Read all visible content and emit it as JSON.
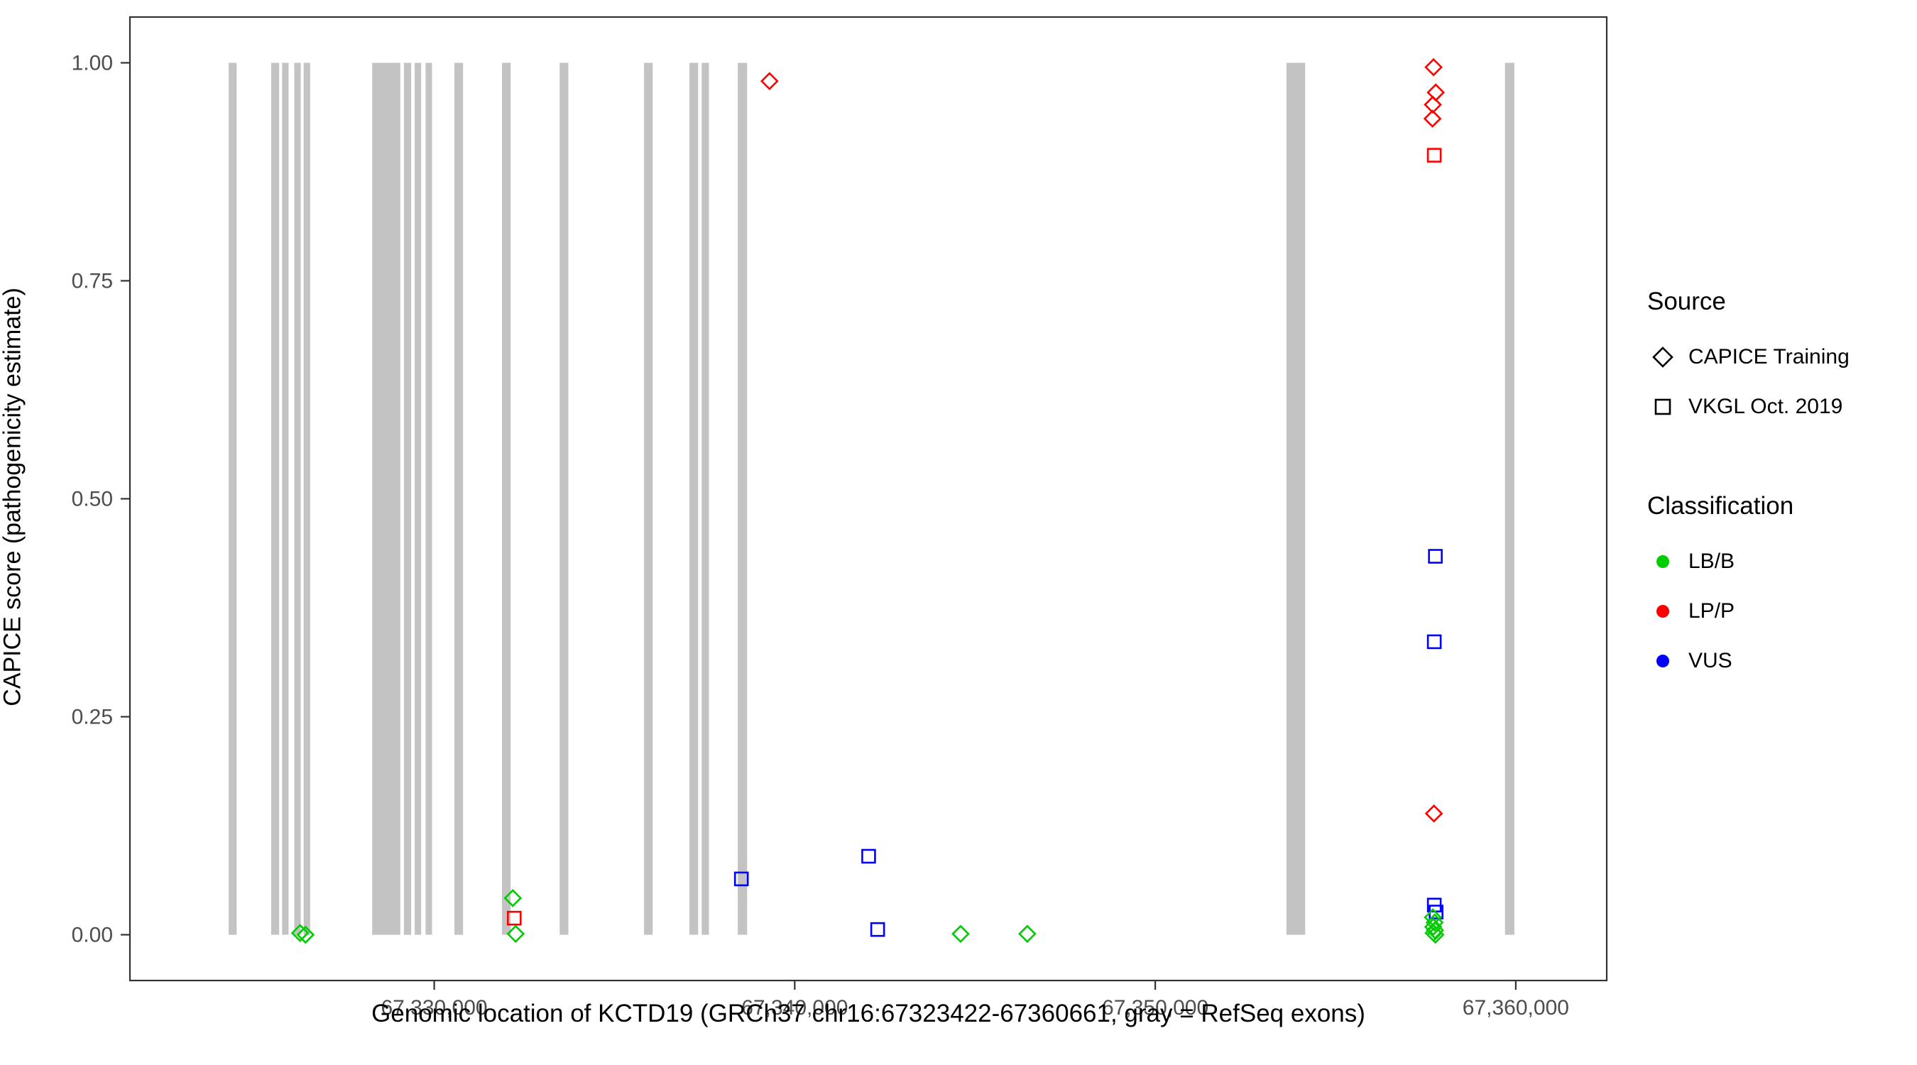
{
  "chart_data": {
    "type": "scatter",
    "title": "",
    "xlabel": "Genomic location of KCTD19 (GRCh37 chr16:67323422-67360661, gray = RefSeq exons)",
    "ylabel": "CAPICE score (pathogenicity estimate)",
    "xlim": [
      67321560,
      67362523
    ],
    "ylim": [
      -0.0525,
      1.0525
    ],
    "x_ticks": [
      67330000,
      67340000,
      67350000,
      67360000
    ],
    "x_tick_labels": [
      "67,330,000",
      "67,340,000",
      "67,350,000",
      "67,360,000"
    ],
    "y_ticks": [
      0.0,
      0.25,
      0.5,
      0.75,
      1.0
    ],
    "y_tick_labels": [
      "0.00",
      "0.25",
      "0.50",
      "0.75",
      "1.00"
    ],
    "grid": false,
    "legend_position": "right",
    "exon_span": [
      0.0,
      1.0
    ],
    "exons": [
      {
        "start": 67324300,
        "end": 67324520
      },
      {
        "start": 67325480,
        "end": 67325700
      },
      {
        "start": 67325780,
        "end": 67325960
      },
      {
        "start": 67326120,
        "end": 67326300
      },
      {
        "start": 67326380,
        "end": 67326560
      },
      {
        "start": 67328280,
        "end": 67329060
      },
      {
        "start": 67329160,
        "end": 67329360
      },
      {
        "start": 67329460,
        "end": 67329640
      },
      {
        "start": 67329760,
        "end": 67329940
      },
      {
        "start": 67330560,
        "end": 67330800
      },
      {
        "start": 67331880,
        "end": 67332120
      },
      {
        "start": 67333480,
        "end": 67333720
      },
      {
        "start": 67335820,
        "end": 67336060
      },
      {
        "start": 67337080,
        "end": 67337320
      },
      {
        "start": 67337420,
        "end": 67337620
      },
      {
        "start": 67338420,
        "end": 67338680
      },
      {
        "start": 67353640,
        "end": 67354160
      },
      {
        "start": 67359700,
        "end": 67359960
      }
    ],
    "points": [
      {
        "x": 67326280,
        "y": 0.002,
        "source": "CAPICE Training",
        "classification": "LB/B"
      },
      {
        "x": 67326430,
        "y": 0.0,
        "source": "CAPICE Training",
        "classification": "LB/B"
      },
      {
        "x": 67332180,
        "y": 0.042,
        "source": "CAPICE Training",
        "classification": "LB/B"
      },
      {
        "x": 67332260,
        "y": 0.001,
        "source": "CAPICE Training",
        "classification": "LB/B"
      },
      {
        "x": 67332220,
        "y": 0.019,
        "source": "VKGL Oct. 2019",
        "classification": "LP/P"
      },
      {
        "x": 67338520,
        "y": 0.064,
        "source": "VKGL Oct. 2019",
        "classification": "VUS"
      },
      {
        "x": 67339300,
        "y": 0.979,
        "source": "CAPICE Training",
        "classification": "LP/P"
      },
      {
        "x": 67342050,
        "y": 0.09,
        "source": "VKGL Oct. 2019",
        "classification": "VUS"
      },
      {
        "x": 67342300,
        "y": 0.006,
        "source": "VKGL Oct. 2019",
        "classification": "VUS"
      },
      {
        "x": 67344600,
        "y": 0.001,
        "source": "CAPICE Training",
        "classification": "LB/B"
      },
      {
        "x": 67346450,
        "y": 0.001,
        "source": "CAPICE Training",
        "classification": "LB/B"
      },
      {
        "x": 67357720,
        "y": 0.995,
        "source": "CAPICE Training",
        "classification": "LP/P"
      },
      {
        "x": 67357780,
        "y": 0.966,
        "source": "CAPICE Training",
        "classification": "LP/P"
      },
      {
        "x": 67357700,
        "y": 0.952,
        "source": "CAPICE Training",
        "classification": "LP/P"
      },
      {
        "x": 67357690,
        "y": 0.936,
        "source": "CAPICE Training",
        "classification": "LP/P"
      },
      {
        "x": 67357740,
        "y": 0.894,
        "source": "VKGL Oct. 2019",
        "classification": "LP/P"
      },
      {
        "x": 67357770,
        "y": 0.434,
        "source": "VKGL Oct. 2019",
        "classification": "VUS"
      },
      {
        "x": 67357740,
        "y": 0.336,
        "source": "VKGL Oct. 2019",
        "classification": "VUS"
      },
      {
        "x": 67357730,
        "y": 0.139,
        "source": "CAPICE Training",
        "classification": "LP/P"
      },
      {
        "x": 67357740,
        "y": 0.034,
        "source": "VKGL Oct. 2019",
        "classification": "VUS"
      },
      {
        "x": 67357790,
        "y": 0.026,
        "source": "VKGL Oct. 2019",
        "classification": "VUS"
      },
      {
        "x": 67357700,
        "y": 0.02,
        "source": "CAPICE Training",
        "classification": "LB/B"
      },
      {
        "x": 67357750,
        "y": 0.014,
        "source": "CAPICE Training",
        "classification": "LB/B"
      },
      {
        "x": 67357710,
        "y": 0.009,
        "source": "CAPICE Training",
        "classification": "LB/B"
      },
      {
        "x": 67357760,
        "y": 0.005,
        "source": "CAPICE Training",
        "classification": "LB/B"
      },
      {
        "x": 67357720,
        "y": 0.002,
        "source": "CAPICE Training",
        "classification": "LB/B"
      },
      {
        "x": 67357770,
        "y": 0.0,
        "source": "CAPICE Training",
        "classification": "LB/B"
      }
    ]
  },
  "colors": {
    "LB/B": "#00CD00",
    "LP/P": "#FF0000",
    "VUS": "#0000FF",
    "exon": "#C3C3C3",
    "axis": "#333333",
    "tick_label": "#4D4D4D",
    "marker_black": "#000000"
  },
  "legend": {
    "source": {
      "title": "Source",
      "items": [
        {
          "label": "CAPICE Training",
          "shape": "diamond"
        },
        {
          "label": "VKGL Oct. 2019",
          "shape": "square"
        }
      ]
    },
    "classification": {
      "title": "Classification",
      "items": [
        {
          "label": "LB/B",
          "color": "#00CD00"
        },
        {
          "label": "LP/P",
          "color": "#FF0000"
        },
        {
          "label": "VUS",
          "color": "#0000FF"
        }
      ]
    }
  }
}
